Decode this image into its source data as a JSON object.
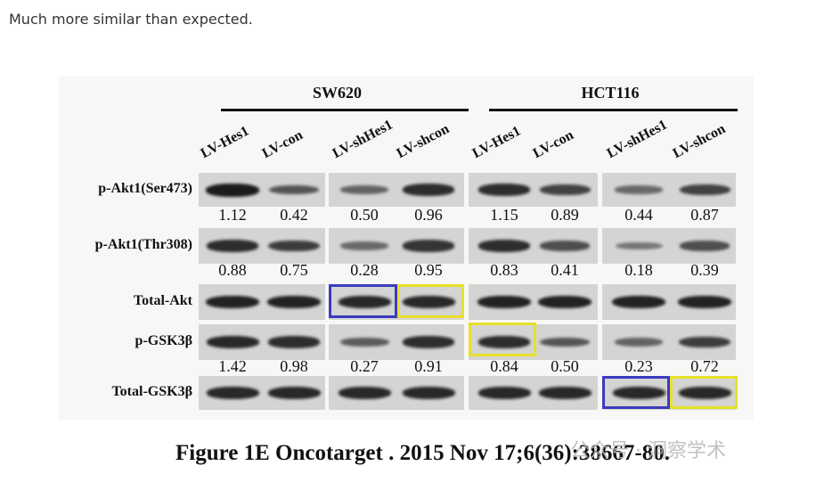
{
  "comment": "Much more similar than expected.",
  "figure": {
    "groups": [
      "SW620",
      "HCT116"
    ],
    "lanes": [
      "LV-Hes1",
      "LV-con",
      "LV-shHes1",
      "LV-shcon",
      "LV-Hes1",
      "LV-con",
      "LV-shHes1",
      "LV-shcon"
    ],
    "rows": [
      {
        "label": "p-Akt1(Ser473)",
        "values": [
          "1.12",
          "0.42",
          "0.50",
          "0.96",
          "1.15",
          "0.89",
          "0.44",
          "0.87"
        ],
        "intensity": [
          1.0,
          0.55,
          0.45,
          0.85,
          0.85,
          0.7,
          0.4,
          0.7
        ]
      },
      {
        "label": "p-Akt1(Thr308)",
        "values": [
          "0.88",
          "0.75",
          "0.28",
          "0.95",
          "0.83",
          "0.41",
          "0.18",
          "0.39"
        ],
        "intensity": [
          0.85,
          0.75,
          0.4,
          0.8,
          0.85,
          0.6,
          0.3,
          0.6
        ]
      },
      {
        "label": "Total-Akt",
        "values": [],
        "intensity": [
          0.95,
          0.95,
          0.9,
          0.9,
          0.95,
          0.95,
          0.95,
          0.95
        ]
      },
      {
        "label": "p-GSK3β",
        "values": [
          "1.42",
          "0.98",
          "0.27",
          "0.91",
          "0.84",
          "0.50",
          "0.23",
          "0.72"
        ],
        "intensity": [
          0.9,
          0.85,
          0.5,
          0.85,
          0.85,
          0.55,
          0.45,
          0.75
        ]
      },
      {
        "label": "Total-GSK3β",
        "values": [],
        "intensity": [
          0.9,
          0.9,
          0.9,
          0.9,
          0.9,
          0.9,
          0.9,
          0.9
        ]
      }
    ],
    "highlight_colors": {
      "blue": "#3b3bbf",
      "yellow": "#e8e02a"
    }
  },
  "caption": "Figure 1E Oncotarget . 2015 Nov 17;6(36):38667-80.",
  "watermark": "公众号 · 洞察学术"
}
